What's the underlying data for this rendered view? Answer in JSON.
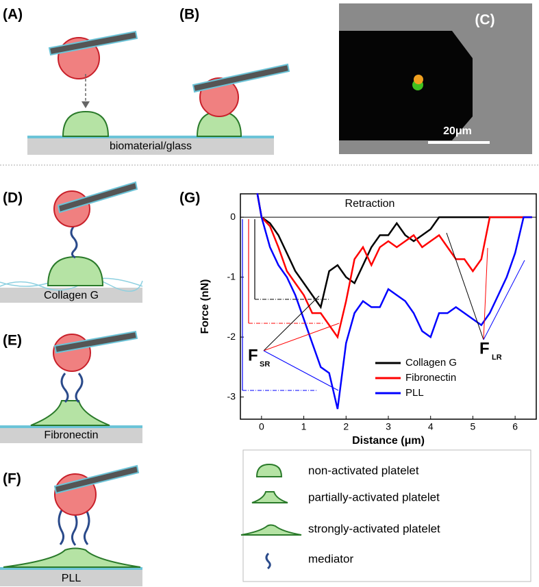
{
  "panels": {
    "a": "(A)",
    "b": "(B)",
    "c": "(C)",
    "d": "(D)",
    "e": "(E)",
    "f": "(F)",
    "g": "(G)"
  },
  "substrate": "biomaterial/glass",
  "scale_bar": "20μm",
  "surfaces": [
    "Collagen G",
    "Fibronectin",
    "PLL"
  ],
  "legend_box": [
    "non-activated platelet",
    "partially-activated platelet",
    "strongly-activated platelet",
    "mediator"
  ],
  "chart_data": {
    "type": "line",
    "xlabel": "Distance (μm)",
    "ylabel": "Force (nN)",
    "annotations": {
      "retraction": "Retraction",
      "f_sr": {
        "main": "F",
        "sub": "SR"
      },
      "f_lr": {
        "main": "F",
        "sub": "LR"
      }
    },
    "x": [
      -0.1,
      0,
      0.2,
      0.4,
      0.6,
      0.8,
      1.0,
      1.2,
      1.4,
      1.6,
      1.8,
      2.0,
      2.2,
      2.4,
      2.6,
      2.8,
      3.0,
      3.2,
      3.4,
      3.6,
      3.8,
      4.0,
      4.2,
      4.4,
      4.6,
      4.8,
      5.0,
      5.2,
      5.4,
      5.6,
      5.8,
      6.0,
      6.2,
      6.4
    ],
    "series": [
      {
        "name": "Collagen G",
        "color": "#000000",
        "values": [
          0.4,
          0,
          -0.1,
          -0.3,
          -0.6,
          -0.9,
          -1.1,
          -1.3,
          -1.5,
          -0.9,
          -0.8,
          -1.0,
          -1.1,
          -0.8,
          -0.5,
          -0.3,
          -0.3,
          -0.1,
          -0.3,
          -0.4,
          -0.3,
          -0.2,
          0,
          0,
          0,
          0,
          0,
          0,
          0,
          0,
          0,
          0,
          0,
          0
        ]
      },
      {
        "name": "Fibronectin",
        "color": "#ff0000",
        "values": [
          0.4,
          0,
          -0.15,
          -0.5,
          -0.9,
          -1.1,
          -1.3,
          -1.6,
          -1.6,
          -1.8,
          -2.0,
          -1.4,
          -0.7,
          -0.5,
          -0.8,
          -0.5,
          -0.4,
          -0.5,
          -0.4,
          -0.3,
          -0.5,
          -0.4,
          -0.3,
          -0.5,
          -0.7,
          -0.7,
          -0.9,
          -0.7,
          0,
          0,
          0,
          0,
          0,
          0
        ]
      },
      {
        "name": "PLL",
        "color": "#0000ff",
        "values": [
          0.4,
          0,
          -0.5,
          -0.8,
          -1.0,
          -1.3,
          -1.7,
          -2.1,
          -2.5,
          -2.6,
          -3.2,
          -2.1,
          -1.6,
          -1.4,
          -1.5,
          -1.5,
          -1.2,
          -1.3,
          -1.4,
          -1.6,
          -1.9,
          -2.0,
          -1.6,
          -1.6,
          -1.5,
          -1.6,
          -1.7,
          -1.8,
          -1.6,
          -1.3,
          -1.0,
          -0.6,
          0,
          0
        ]
      }
    ],
    "xlim": [
      -0.5,
      6.5
    ],
    "ylim": [
      -3.37,
      0.39
    ],
    "xticks": [
      0,
      1,
      2,
      3,
      4,
      5,
      6
    ],
    "yticks": [
      -3,
      -2,
      -1,
      0
    ],
    "zero_line": true
  }
}
